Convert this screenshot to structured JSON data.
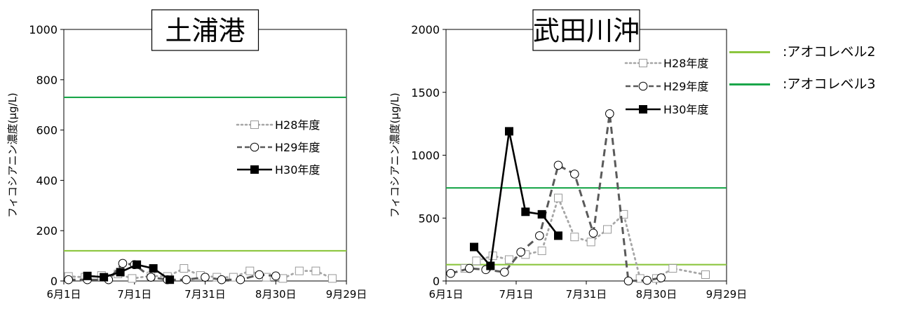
{
  "x_ticks": [
    "6月1日",
    "7月1日",
    "7月31日",
    "8月30日",
    "9月29日"
  ],
  "legend_labels": {
    "h28": "H28年度",
    "h29": "H29年度",
    "h30": "H30年度"
  },
  "side_legend": [
    {
      "label": ":アオコレベル2",
      "color": "#8cc63f"
    },
    {
      "label": ":アオコレベル3",
      "color": "#1aa64a"
    }
  ],
  "chart_data": [
    {
      "type": "line",
      "title": "土浦港",
      "ylabel": "フィコシアニン濃度(µg/L)",
      "xlabel": "",
      "x_axis": "date",
      "xlim": [
        "2000-06-01",
        "2000-09-29"
      ],
      "ylim": [
        0,
        1000
      ],
      "yticks": [
        0,
        200,
        400,
        600,
        800,
        1000
      ],
      "grid": false,
      "legend_position": "right",
      "reference_lines": [
        {
          "name": "アオコレベル2",
          "value": 120,
          "color": "#8cc63f"
        },
        {
          "name": "アオコレベル3",
          "value": 730,
          "color": "#1aa64a"
        }
      ],
      "series": [
        {
          "name": "H28年度",
          "style": "dotted",
          "marker": "open-square",
          "color": "#a6a6a6",
          "x": [
            "2000-06-03",
            "2000-06-10",
            "2000-06-17",
            "2000-06-24",
            "2000-06-30",
            "2000-07-08",
            "2000-07-15",
            "2000-07-22",
            "2000-07-29",
            "2000-08-05",
            "2000-08-12",
            "2000-08-19",
            "2000-08-26",
            "2000-09-02",
            "2000-09-09",
            "2000-09-16",
            "2000-09-23"
          ],
          "y": [
            18,
            15,
            22,
            28,
            10,
            20,
            18,
            50,
            22,
            15,
            15,
            40,
            15,
            10,
            40,
            40,
            10
          ]
        },
        {
          "name": "H29年度",
          "style": "dashed",
          "marker": "open-circle",
          "color": "#5a5a5a",
          "x": [
            "2000-06-03",
            "2000-06-11",
            "2000-06-20",
            "2000-06-26",
            "2000-07-01",
            "2000-07-08",
            "2000-07-15",
            "2000-07-23",
            "2000-07-31",
            "2000-08-07",
            "2000-08-15",
            "2000-08-23",
            "2000-08-30"
          ],
          "y": [
            5,
            5,
            5,
            70,
            65,
            15,
            5,
            5,
            15,
            5,
            5,
            25,
            20
          ]
        },
        {
          "name": "H30年度",
          "style": "solid",
          "marker": "filled-square",
          "color": "#000000",
          "x": [
            "2000-06-11",
            "2000-06-18",
            "2000-06-25",
            "2000-07-02",
            "2000-07-09",
            "2000-07-16"
          ],
          "y": [
            20,
            15,
            35,
            65,
            50,
            5
          ]
        }
      ]
    },
    {
      "type": "line",
      "title": "武田川沖",
      "ylabel": "フィコシアニン濃度(µg/L)",
      "xlabel": "",
      "x_axis": "date",
      "xlim": [
        "2000-06-01",
        "2000-09-29"
      ],
      "ylim": [
        0,
        2000
      ],
      "yticks": [
        0,
        500,
        1000,
        1500,
        2000
      ],
      "grid": false,
      "legend_position": "top-right",
      "reference_lines": [
        {
          "name": "アオコレベル2",
          "value": 130,
          "color": "#8cc63f"
        },
        {
          "name": "アオコレベル3",
          "value": 740,
          "color": "#1aa64a"
        }
      ],
      "series": [
        {
          "name": "H28年度",
          "style": "dotted",
          "marker": "open-square",
          "color": "#a6a6a6",
          "x": [
            "2000-06-09",
            "2000-06-14",
            "2000-06-21",
            "2000-06-28",
            "2000-07-05",
            "2000-07-12",
            "2000-07-19",
            "2000-07-26",
            "2000-08-02",
            "2000-08-09",
            "2000-08-16",
            "2000-08-23",
            "2000-08-30",
            "2000-09-06",
            "2000-09-20"
          ],
          "y": [
            100,
            160,
            200,
            170,
            210,
            240,
            660,
            350,
            310,
            410,
            530,
            20,
            20,
            100,
            50
          ]
        },
        {
          "name": "H29年度",
          "style": "dashed",
          "marker": "open-circle",
          "color": "#5a5a5a",
          "x": [
            "2000-06-03",
            "2000-06-11",
            "2000-06-18",
            "2000-06-26",
            "2000-07-03",
            "2000-07-11",
            "2000-07-19",
            "2000-07-26",
            "2000-08-03",
            "2000-08-10",
            "2000-08-18",
            "2000-08-26",
            "2000-09-01"
          ],
          "y": [
            60,
            100,
            90,
            70,
            230,
            360,
            920,
            850,
            380,
            1330,
            0,
            5,
            25
          ]
        },
        {
          "name": "H30年度",
          "style": "solid",
          "marker": "filled-square",
          "color": "#000000",
          "x": [
            "2000-06-13",
            "2000-06-20",
            "2000-06-28",
            "2000-07-05",
            "2000-07-12",
            "2000-07-19"
          ],
          "y": [
            270,
            120,
            1190,
            550,
            530,
            360
          ]
        }
      ]
    }
  ]
}
